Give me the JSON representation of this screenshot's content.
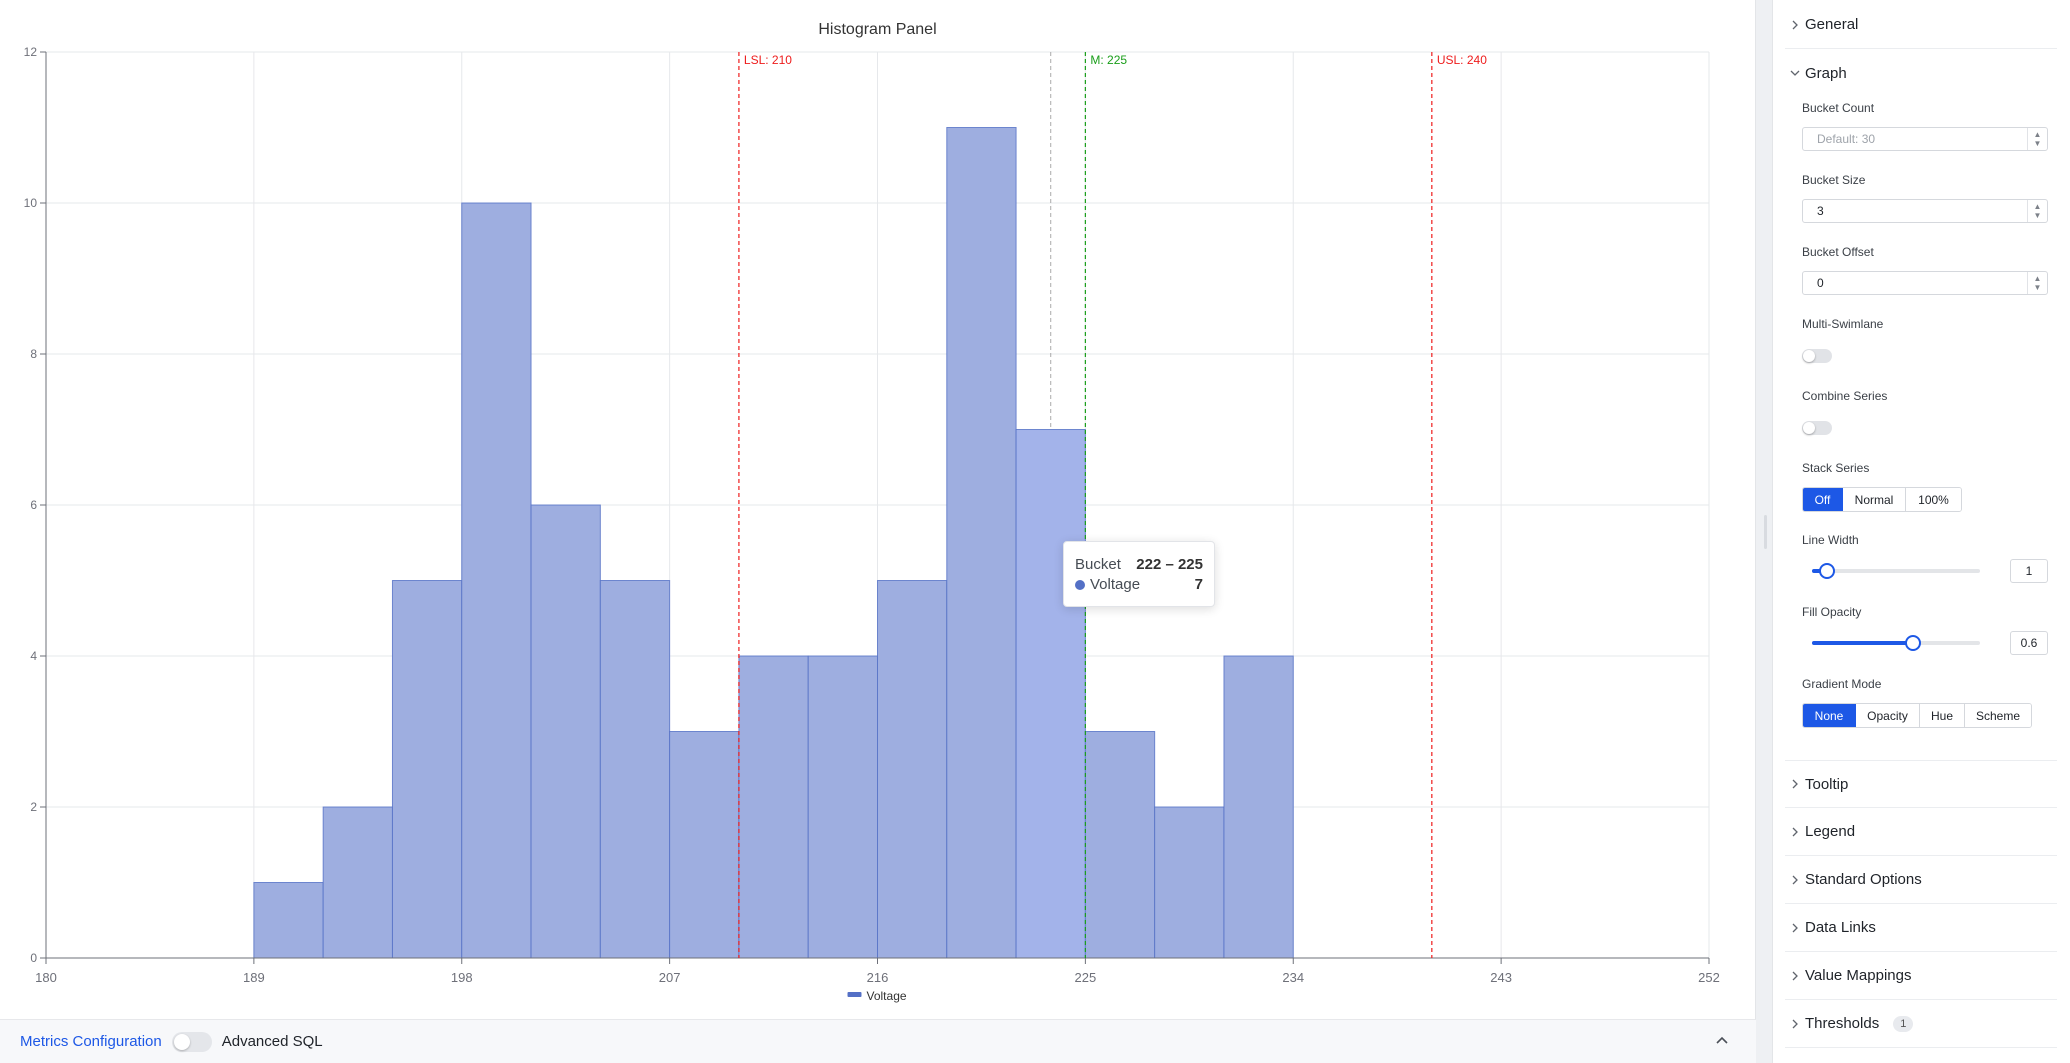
{
  "chart_data": {
    "type": "bar",
    "title": "Histogram Panel",
    "bin_edges": [
      189,
      192,
      195,
      198,
      201,
      204,
      207,
      210,
      213,
      216,
      219,
      222,
      225,
      228,
      231,
      234
    ],
    "values": [
      1,
      2,
      5,
      10,
      6,
      5,
      3,
      4,
      4,
      5,
      11,
      7,
      3,
      2,
      4
    ],
    "series": [
      {
        "name": "Voltage",
        "values": [
          1,
          2,
          5,
          10,
          6,
          5,
          3,
          4,
          4,
          5,
          11,
          7,
          3,
          2,
          4
        ]
      }
    ],
    "xlim": [
      180,
      252
    ],
    "ylim": [
      0,
      12
    ],
    "x_ticks": [
      "180",
      "189",
      "198",
      "207",
      "216",
      "225",
      "234",
      "243",
      "252"
    ],
    "y_ticks": [
      "0",
      "2",
      "4",
      "6",
      "8",
      "10",
      "12"
    ],
    "reference_lines": [
      {
        "label": "LSL: 210",
        "x": 210,
        "color": "#ee1c1c"
      },
      {
        "label": "M: 225",
        "x": 225,
        "color": "#1a9e1a"
      },
      {
        "label": "USL: 240",
        "x": 240,
        "color": "#ee1c1c"
      }
    ],
    "hover_x": 223.5,
    "highlighted_bin": 11,
    "legend": {
      "position": "bottom",
      "labels": [
        "Voltage"
      ]
    },
    "grid": true,
    "colors": {
      "bar": "#9eaee0",
      "bar_hover": "#a3b3ea",
      "bar_edge": "#5470c6"
    }
  },
  "tooltip": {
    "bucket_label": "Bucket",
    "bucket_value": "222 – 225",
    "series_name": "Voltage",
    "series_value": "7"
  },
  "bottom_bar": {
    "metrics_label": "Metrics Configuration",
    "advanced_sql_label": "Advanced SQL",
    "collapse_icon": "chevron-up-icon"
  },
  "sidebar": {
    "general": {
      "label": "General"
    },
    "graph": {
      "label": "Graph",
      "bucket_count": {
        "label": "Bucket Count",
        "placeholder": "Default: 30"
      },
      "bucket_size": {
        "label": "Bucket Size",
        "value": "3"
      },
      "bucket_offset": {
        "label": "Bucket Offset",
        "value": "0"
      },
      "multi_swimlane": {
        "label": "Multi-Swimlane",
        "on": false
      },
      "combine_series": {
        "label": "Combine Series",
        "on": false
      },
      "stack_series": {
        "label": "Stack Series",
        "options": [
          "Off",
          "Normal",
          "100%"
        ],
        "selected": "Off"
      },
      "line_width": {
        "label": "Line Width",
        "value": "1",
        "fraction": 0.09
      },
      "fill_opacity": {
        "label": "Fill Opacity",
        "value": "0.6",
        "fraction": 0.6
      },
      "gradient_mode": {
        "label": "Gradient Mode",
        "options": [
          "None",
          "Opacity",
          "Hue",
          "Scheme"
        ],
        "selected": "None"
      }
    },
    "tooltip": {
      "label": "Tooltip"
    },
    "legend": {
      "label": "Legend"
    },
    "standard_options": {
      "label": "Standard Options"
    },
    "data_links": {
      "label": "Data Links"
    },
    "value_mappings": {
      "label": "Value Mappings"
    },
    "thresholds": {
      "label": "Thresholds",
      "badge": "1"
    }
  },
  "colors": {
    "accent": "#1d58e6",
    "link": "#1d58e6"
  }
}
